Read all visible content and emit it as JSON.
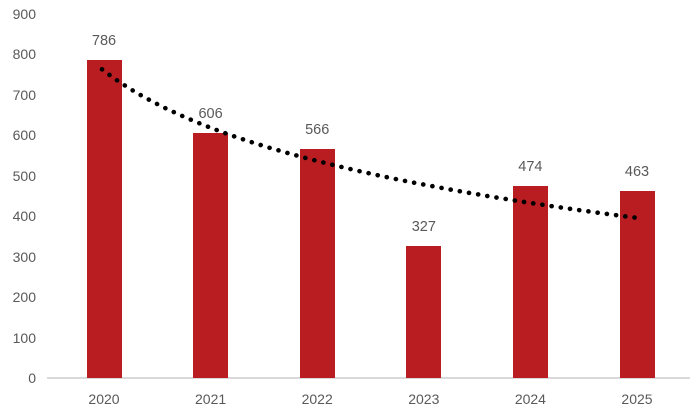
{
  "chart_data": {
    "type": "bar",
    "title": "",
    "xlabel": "",
    "ylabel": "",
    "categories": [
      "2020",
      "2021",
      "2022",
      "2023",
      "2024",
      "2025"
    ],
    "values": [
      786,
      606,
      566,
      327,
      474,
      463
    ],
    "data_labels": [
      "786",
      "606",
      "566",
      "327",
      "474",
      "463"
    ],
    "ylim": [
      0,
      900
    ],
    "ytick_step": 100,
    "ytick_labels": [
      "0",
      "100",
      "200",
      "300",
      "400",
      "500",
      "600",
      "700",
      "800",
      "900"
    ],
    "grid": false,
    "legend": "none",
    "bar_color": "#b91d22",
    "axis_line_color": "#d9d9d9",
    "tick_label_color": "#595959",
    "data_label_color": "#595959",
    "trendline": {
      "type": "logarithmic",
      "style": "dotted",
      "color": "#000000",
      "intercept_a": 759.5,
      "coef_b": -202.9,
      "start_value": 760,
      "end_value": 396
    }
  }
}
